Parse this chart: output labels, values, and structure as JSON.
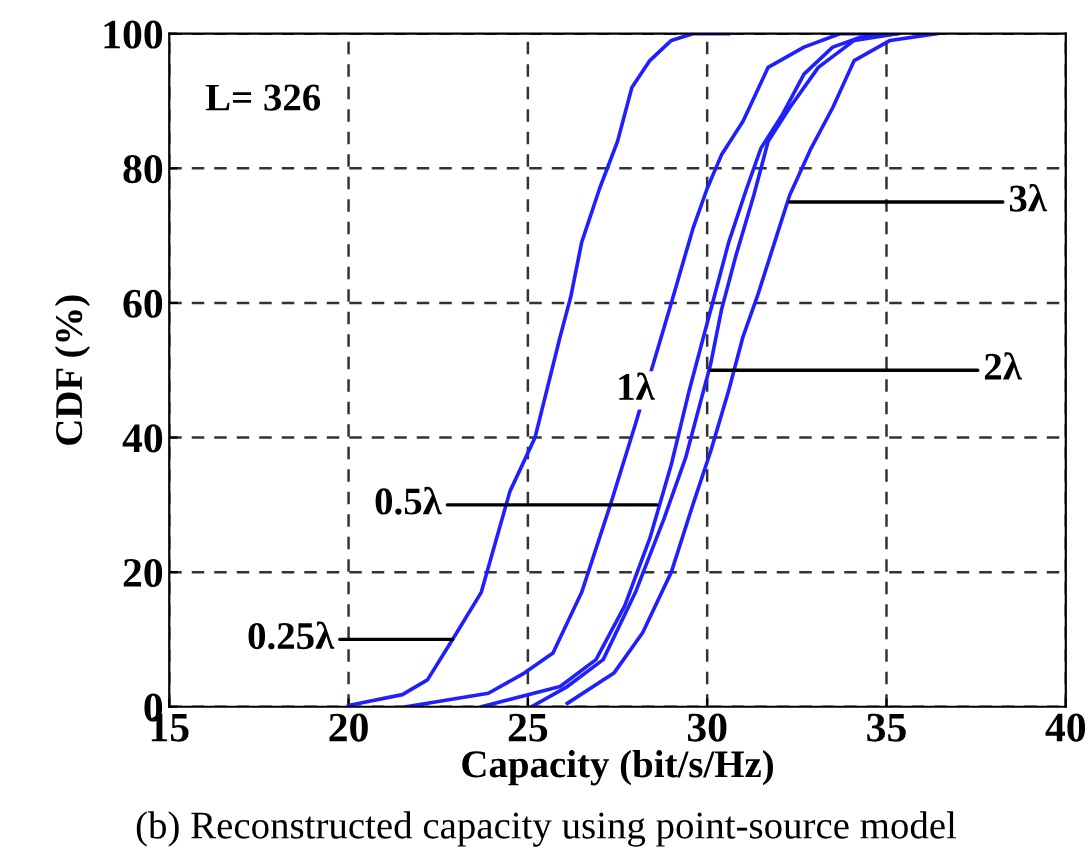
{
  "chart_data": {
    "type": "line",
    "title": "(b) Reconstructed capacity using point-source model",
    "xlabel": "Capacity (bit/s/Hz)",
    "ylabel": "CDF (%)",
    "xlim": [
      15,
      40
    ],
    "xticks": [
      15,
      20,
      25,
      30,
      35,
      40
    ],
    "ylim": [
      0,
      100
    ],
    "yticks": [
      0,
      20,
      40,
      60,
      80,
      100
    ],
    "grid": true,
    "line_style": "solid",
    "series": [
      {
        "color": "#1f1fff",
        "x": [
          20.0,
          21.5,
          22.2,
          22.9,
          23.7,
          24.5,
          25.2,
          25.9,
          26.2,
          26.5,
          27.0,
          27.5,
          27.9,
          28.4,
          29.0,
          29.6,
          30.6
        ],
        "values": [
          0.2,
          1.8,
          4,
          10,
          17,
          32,
          40,
          55,
          61,
          69,
          77,
          84,
          92,
          96,
          99,
          100,
          100
        ]
      },
      {
        "color": "#1f1fff",
        "x": [
          21.6,
          23.9,
          24.9,
          25.7,
          26.5,
          27.3,
          28.0,
          28.5,
          29.0,
          29.6,
          30.0,
          30.4,
          31.0,
          31.7,
          32.7,
          33.7,
          34.5
        ],
        "values": [
          0,
          2,
          5,
          8,
          17,
          30,
          42,
          51,
          60,
          71,
          77,
          82,
          87,
          95,
          98,
          100,
          100
        ]
      },
      {
        "color": "#1f1fff",
        "x": [
          23.7,
          25.9,
          26.9,
          27.7,
          28.4,
          29.0,
          29.5,
          29.9,
          30.2,
          30.6,
          31.1,
          31.5,
          32.1,
          32.7,
          33.5,
          34.3,
          35.3
        ],
        "values": [
          0,
          3,
          7,
          15,
          25,
          36,
          47,
          55,
          61,
          69,
          77,
          83,
          88,
          94,
          98,
          99.5,
          100
        ]
      },
      {
        "color": "#1f1fff",
        "x": [
          25.1,
          26.1,
          27.1,
          28.0,
          28.8,
          29.4,
          29.8,
          30.1,
          30.4,
          30.8,
          31.3,
          31.7,
          32.3,
          33.1,
          34.1,
          35.3
        ],
        "values": [
          0,
          3,
          7,
          17,
          28,
          37,
          45,
          51,
          59,
          67,
          76,
          84,
          89,
          95,
          99,
          100
        ]
      },
      {
        "color": "#1f1fff",
        "x": [
          26.1,
          27.4,
          28.2,
          29.0,
          29.6,
          30.1,
          30.6,
          31.0,
          31.4,
          32.0,
          32.3,
          32.9,
          33.5,
          34.1,
          35.1,
          36.4
        ],
        "values": [
          0.5,
          5,
          11,
          20,
          30,
          38,
          47,
          55,
          61,
          71,
          76,
          83,
          89,
          96,
          99,
          100
        ]
      }
    ],
    "annotations": [
      "L= 326",
      {
        "text": "0.25λ",
        "x": 22.9,
        "y": 10
      },
      {
        "text": "0.5λ",
        "x": 28.6,
        "y": 30
      },
      {
        "text": "1λ",
        "x": 29.5,
        "y": 47
      },
      {
        "text": "2λ",
        "x": 30.1,
        "y": 50
      },
      {
        "text": "3λ",
        "x": 32.3,
        "y": 75
      }
    ]
  }
}
